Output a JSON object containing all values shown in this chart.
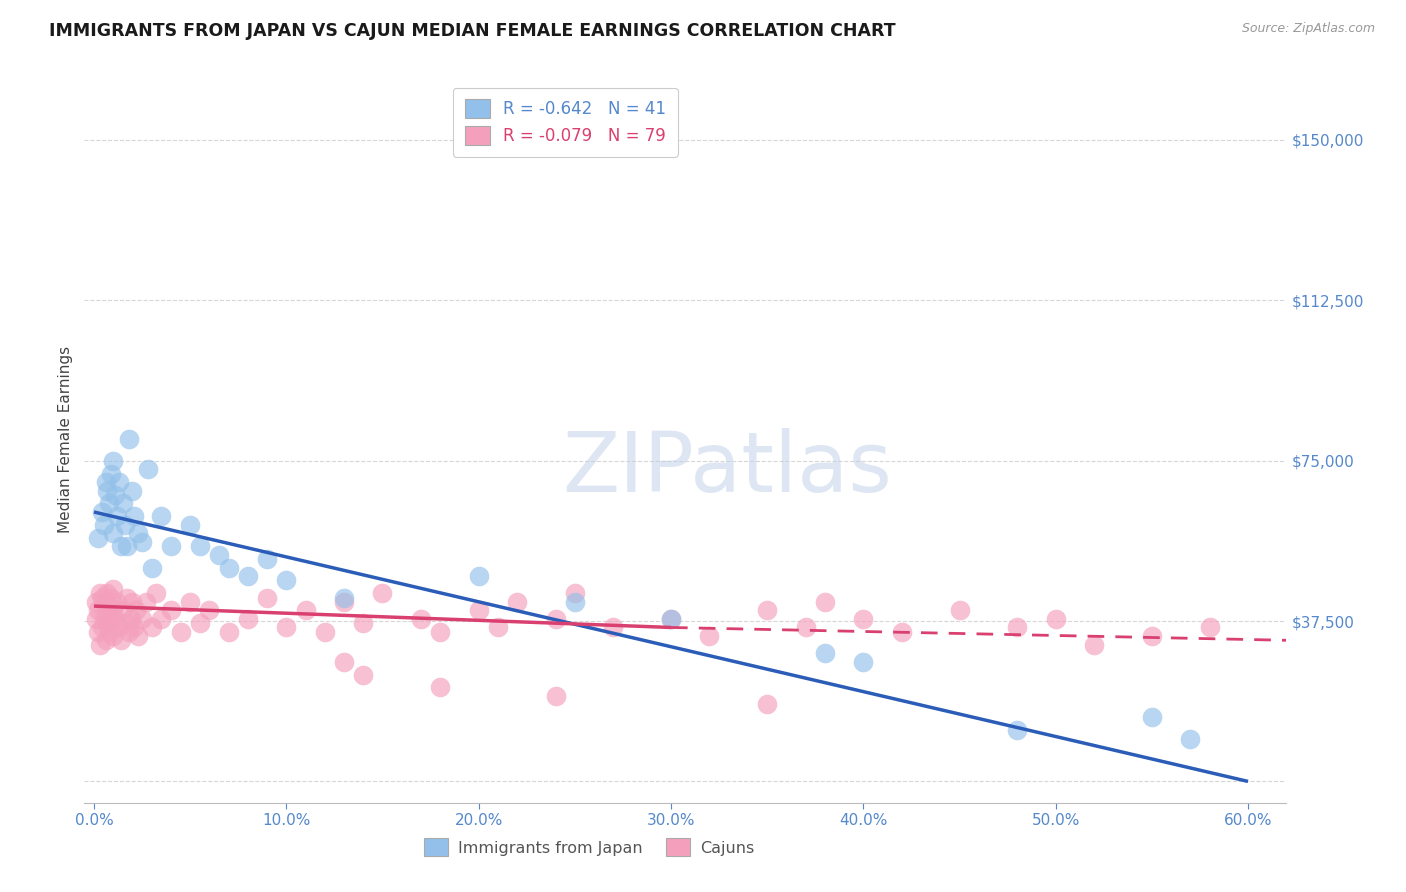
{
  "title": "IMMIGRANTS FROM JAPAN VS CAJUN MEDIAN FEMALE EARNINGS CORRELATION CHART",
  "source": "Source: ZipAtlas.com",
  "ylabel": "Median Female Earnings",
  "xlabel_ticks": [
    "0.0%",
    "10.0%",
    "20.0%",
    "30.0%",
    "40.0%",
    "50.0%",
    "60.0%"
  ],
  "xlabel_vals": [
    0,
    10,
    20,
    30,
    40,
    50,
    60
  ],
  "ytick_vals": [
    0,
    37500,
    75000,
    112500,
    150000
  ],
  "ytick_labels": [
    "",
    "$37,500",
    "$75,000",
    "$112,500",
    "$150,000"
  ],
  "ylim": [
    -5000,
    165000
  ],
  "xlim": [
    -0.5,
    62
  ],
  "blue_R": -0.642,
  "blue_N": 41,
  "pink_R": -0.079,
  "pink_N": 79,
  "blue_color": "#92C0EA",
  "pink_color": "#F4A0BC",
  "blue_line_color": "#2B5DB8",
  "pink_line_color": "#D94070",
  "legend_label_blue": "Immigrants from Japan",
  "legend_label_pink": "Cajuns",
  "watermark": "ZIPatlas",
  "background_color": "#ffffff",
  "grid_color": "#cccccc",
  "axis_color": "#5588CC",
  "title_color": "#1a1a1a",
  "source_color": "#999999",
  "blue_line_x0": 0,
  "blue_line_y0": 63000,
  "blue_line_x1": 60,
  "blue_line_y1": 0,
  "pink_line_x0": 0,
  "pink_line_y0": 41000,
  "pink_line_x1": 30,
  "pink_line_y1": 36000,
  "pink_dash_x0": 30,
  "pink_dash_y0": 36000,
  "pink_dash_x1": 62,
  "pink_dash_y1": 33000,
  "blue_scatter_x": [
    0.2,
    0.4,
    0.5,
    0.6,
    0.7,
    0.8,
    0.9,
    1.0,
    1.0,
    1.1,
    1.2,
    1.3,
    1.4,
    1.5,
    1.6,
    1.7,
    1.8,
    2.0,
    2.1,
    2.3,
    2.5,
    2.8,
    3.0,
    3.5,
    4.0,
    5.0,
    5.5,
    6.5,
    7.0,
    8.0,
    9.0,
    10.0,
    13.0,
    20.0,
    25.0,
    30.0,
    38.0,
    40.0,
    48.0,
    55.0,
    57.0
  ],
  "blue_scatter_y": [
    57000,
    63000,
    60000,
    70000,
    68000,
    65000,
    72000,
    75000,
    58000,
    67000,
    62000,
    70000,
    55000,
    65000,
    60000,
    55000,
    80000,
    68000,
    62000,
    58000,
    56000,
    73000,
    50000,
    62000,
    55000,
    60000,
    55000,
    53000,
    50000,
    48000,
    52000,
    47000,
    43000,
    48000,
    42000,
    38000,
    30000,
    28000,
    12000,
    15000,
    10000
  ],
  "pink_scatter_x": [
    0.1,
    0.1,
    0.2,
    0.2,
    0.3,
    0.3,
    0.4,
    0.4,
    0.5,
    0.5,
    0.6,
    0.6,
    0.7,
    0.7,
    0.8,
    0.8,
    0.9,
    0.9,
    1.0,
    1.0,
    1.0,
    1.1,
    1.2,
    1.3,
    1.4,
    1.5,
    1.6,
    1.7,
    1.8,
    1.9,
    2.0,
    2.1,
    2.2,
    2.3,
    2.5,
    2.7,
    3.0,
    3.2,
    3.5,
    4.0,
    4.5,
    5.0,
    5.5,
    6.0,
    7.0,
    8.0,
    9.0,
    10.0,
    11.0,
    12.0,
    13.0,
    14.0,
    15.0,
    17.0,
    18.0,
    20.0,
    21.0,
    22.0,
    24.0,
    25.0,
    27.0,
    30.0,
    32.0,
    35.0,
    37.0,
    38.0,
    40.0,
    42.0,
    45.0,
    48.0,
    50.0,
    52.0,
    55.0,
    58.0,
    13.0,
    14.0,
    18.0,
    24.0,
    35.0
  ],
  "pink_scatter_y": [
    38000,
    42000,
    35000,
    40000,
    32000,
    44000,
    36000,
    43000,
    38000,
    42000,
    33000,
    40000,
    37000,
    44000,
    35000,
    41000,
    38000,
    43000,
    34000,
    40000,
    45000,
    38000,
    42000,
    36000,
    33000,
    40000,
    37000,
    43000,
    35000,
    38000,
    42000,
    36000,
    40000,
    34000,
    38000,
    42000,
    36000,
    44000,
    38000,
    40000,
    35000,
    42000,
    37000,
    40000,
    35000,
    38000,
    43000,
    36000,
    40000,
    35000,
    42000,
    37000,
    44000,
    38000,
    35000,
    40000,
    36000,
    42000,
    38000,
    44000,
    36000,
    38000,
    34000,
    40000,
    36000,
    42000,
    38000,
    35000,
    40000,
    36000,
    38000,
    32000,
    34000,
    36000,
    28000,
    25000,
    22000,
    20000,
    18000
  ]
}
